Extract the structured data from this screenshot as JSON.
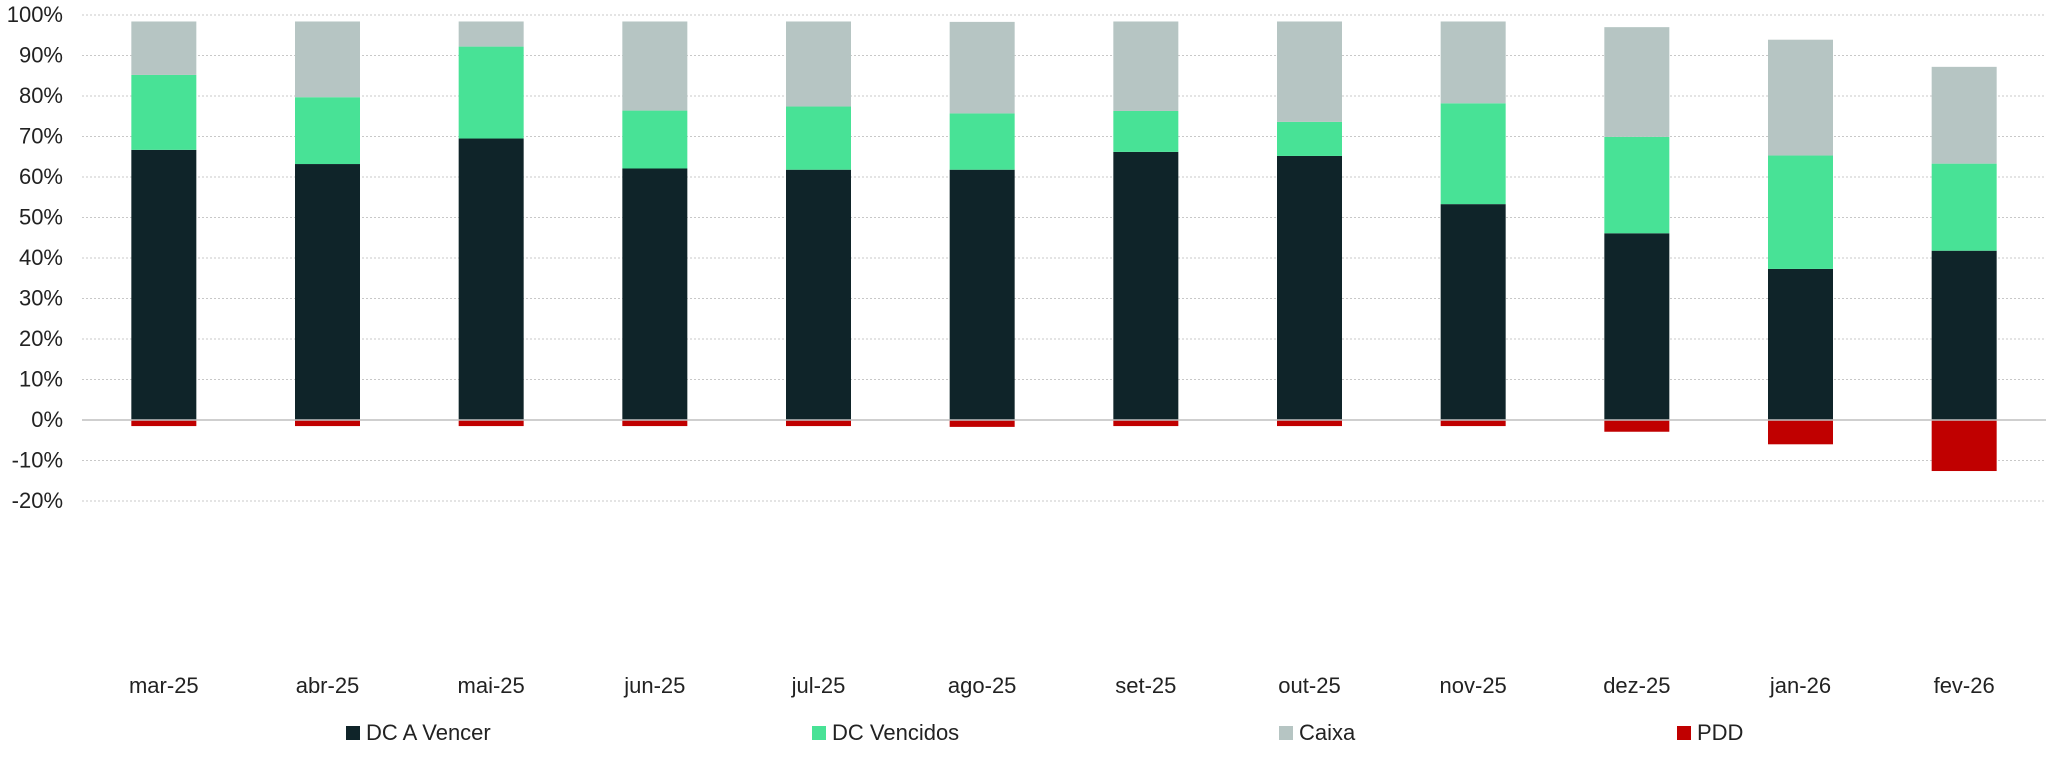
{
  "chart_data": {
    "type": "bar",
    "stacked": true,
    "categories": [
      "mar-25",
      "abr-25",
      "mai-25",
      "jun-25",
      "jul-25",
      "ago-25",
      "set-25",
      "out-25",
      "nov-25",
      "dez-25",
      "jan-26",
      "fev-26"
    ],
    "series": [
      {
        "name": "DC A Vencer",
        "color": "#0f2429",
        "values": [
          66.7,
          63.2,
          69.5,
          62.1,
          61.8,
          61.8,
          66.2,
          65.2,
          53.3,
          46.1,
          37.3,
          41.8
        ]
      },
      {
        "name": "DC Vencidos",
        "color": "#48e296",
        "values": [
          18.5,
          16.5,
          22.7,
          14.3,
          15.6,
          13.9,
          10.1,
          8.4,
          24.9,
          23.8,
          28.0,
          21.5
        ]
      },
      {
        "name": "Caixa",
        "color": "#b6c5c3",
        "values": [
          13.2,
          18.7,
          6.2,
          22.0,
          21.0,
          22.6,
          22.1,
          24.8,
          20.2,
          27.1,
          28.6,
          23.9
        ]
      },
      {
        "name": "PDD",
        "color": "#c00000",
        "values": [
          -1.5,
          -1.5,
          -1.5,
          -1.5,
          -1.5,
          -1.7,
          -1.5,
          -1.5,
          -1.5,
          -2.9,
          -6.0,
          -12.6
        ]
      }
    ],
    "y_ticks": [
      "100%",
      "90%",
      "80%",
      "70%",
      "60%",
      "50%",
      "40%",
      "30%",
      "20%",
      "10%",
      "0%",
      "-10%",
      "-20%"
    ],
    "ylim": [
      -20,
      100
    ],
    "grid": true,
    "legend_position": "bottom",
    "title": "",
    "xlabel": "",
    "ylabel": ""
  }
}
